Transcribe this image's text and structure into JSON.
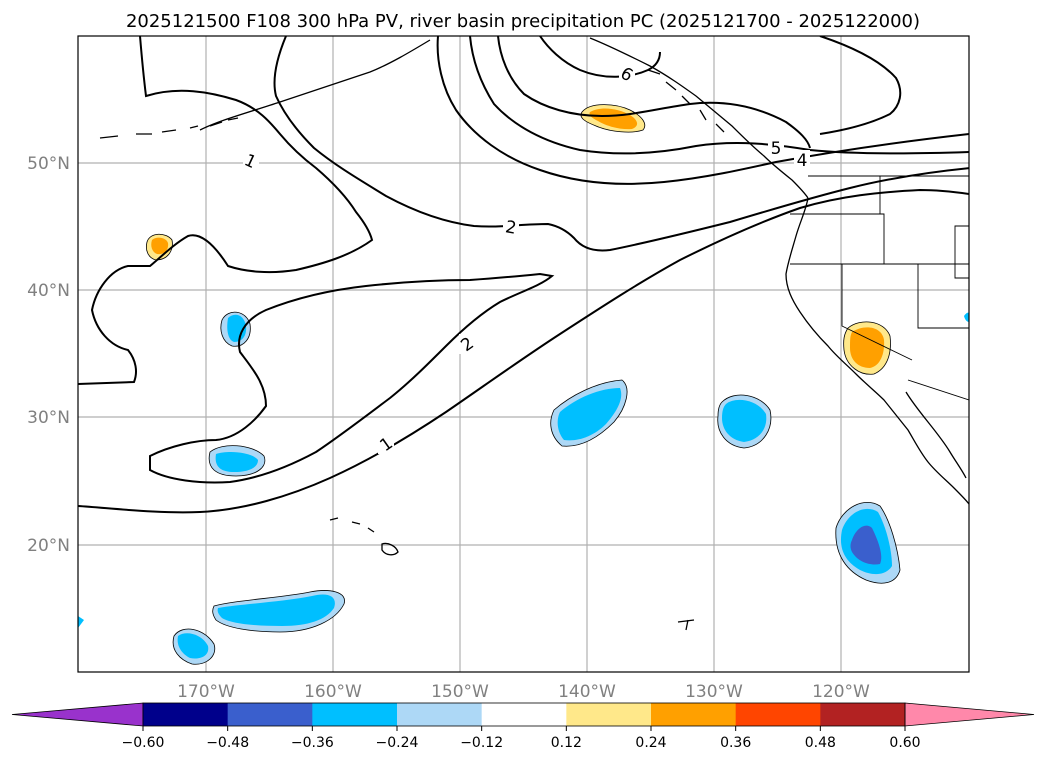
{
  "title": "2025121500 F108 300 hPa PV, river basin precipitation PC (2025121700 - 2025122000)",
  "map": {
    "region": "North Pacific / US West Coast",
    "lon_ticks": [
      "170°W",
      "160°W",
      "150°W",
      "140°W",
      "130°W",
      "120°W"
    ],
    "lat_ticks": [
      "50°N",
      "40°N",
      "30°N",
      "20°N"
    ],
    "gridlines": true,
    "coastline_color": "#000000"
  },
  "contours": {
    "field": "300 hPa PV",
    "labels": [
      "1",
      "2",
      "2",
      "1",
      "6",
      "5",
      "4"
    ]
  },
  "colorbar": {
    "ticks": [
      "−0.60",
      "−0.48",
      "−0.36",
      "−0.24",
      "−0.12",
      "0.12",
      "0.24",
      "0.36",
      "0.48",
      "0.60"
    ],
    "colors": [
      "#9932cc",
      "#00008b",
      "#3a5fcd",
      "#00bfff",
      "#add8f6",
      "#ffffff",
      "#ffe88a",
      "#ffa000",
      "#ff4500",
      "#b22222",
      "#ff88aa"
    ],
    "extend": "both"
  },
  "shading_colors": {
    "light_blue": "#add8f6",
    "blue": "#00bfff",
    "dark_blue": "#3a5fcd",
    "light_orange": "#ffe88a",
    "orange": "#ffa000"
  }
}
